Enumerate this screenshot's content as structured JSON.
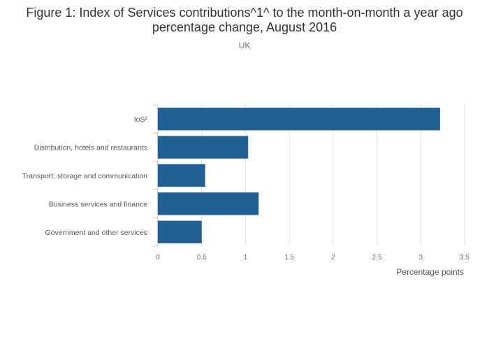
{
  "chart_data": {
    "type": "bar",
    "orientation": "horizontal",
    "title": "Figure 1: Index of Services contributions^1^ to the month-on-month a year ago percentage change, August 2016",
    "subtitle": "UK",
    "xlabel": "Percentage points",
    "ylabel": "",
    "categories": [
      "IoS²",
      "Distribution, hotels and restaurants",
      "Transport, storage and communication",
      "Business services and finance",
      "Government and other services"
    ],
    "values": [
      3.22,
      1.03,
      0.54,
      1.15,
      0.5
    ],
    "xlim": [
      0,
      3.5
    ],
    "xticks": [
      "0",
      "0.5",
      "1",
      "1.5",
      "2",
      "2.5",
      "3",
      "3.5"
    ],
    "grid": true,
    "bar_color": "#206095",
    "grid_color": "#e0e0e0"
  }
}
